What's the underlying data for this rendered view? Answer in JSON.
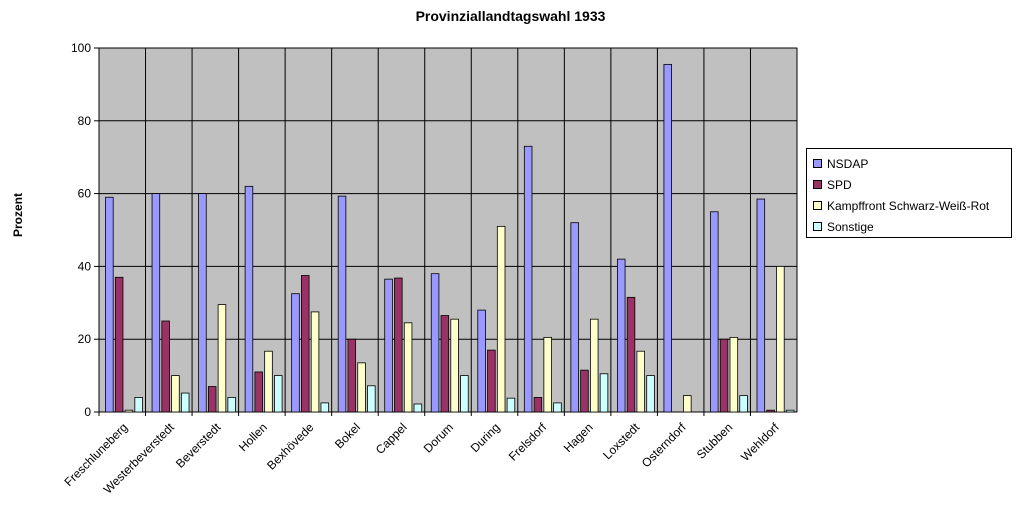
{
  "chart_data": {
    "type": "bar",
    "title": "Provinziallandtagswahl 1933",
    "xlabel": "",
    "ylabel": "Prozent",
    "ylim": [
      0,
      100
    ],
    "yticks": [
      0,
      20,
      40,
      60,
      80,
      100
    ],
    "grid": true,
    "legend_position": "right",
    "plot_background": "#c0c0c0",
    "categories": [
      "Freschluneberg",
      "Westerbeverstedt",
      "Beverstedt",
      "Hollen",
      "Bexhövede",
      "Bokel",
      "Cappel",
      "Dorum",
      "During",
      "Frelsdorf",
      "Hagen",
      "Loxstedt",
      "Osterndorf",
      "Stubben",
      "Wehldorf"
    ],
    "series": [
      {
        "name": "NSDAP",
        "color": "#9999ff",
        "values": [
          59,
          60,
          60,
          62,
          32.5,
          59.3,
          36.5,
          38,
          28,
          73,
          52,
          42,
          95.5,
          55,
          58.5
        ]
      },
      {
        "name": "SPD",
        "color": "#993366",
        "values": [
          37,
          25,
          7,
          11,
          37.5,
          20,
          36.8,
          26.5,
          17,
          4,
          11.5,
          31.5,
          0,
          20,
          0.5
        ]
      },
      {
        "name": "Kampffront Schwarz-Weiß-Rot",
        "color": "#ffffcc",
        "values": [
          0.5,
          10,
          29.5,
          16.7,
          27.5,
          13.5,
          24.5,
          25.5,
          51,
          20.5,
          25.5,
          16.7,
          4.5,
          20.5,
          40
        ]
      },
      {
        "name": "Sonstige",
        "color": "#ccffff",
        "values": [
          4,
          5.2,
          4,
          10,
          2.5,
          7.2,
          2.2,
          10,
          3.8,
          2.5,
          10.5,
          10,
          0,
          4.5,
          0.5
        ]
      }
    ]
  }
}
